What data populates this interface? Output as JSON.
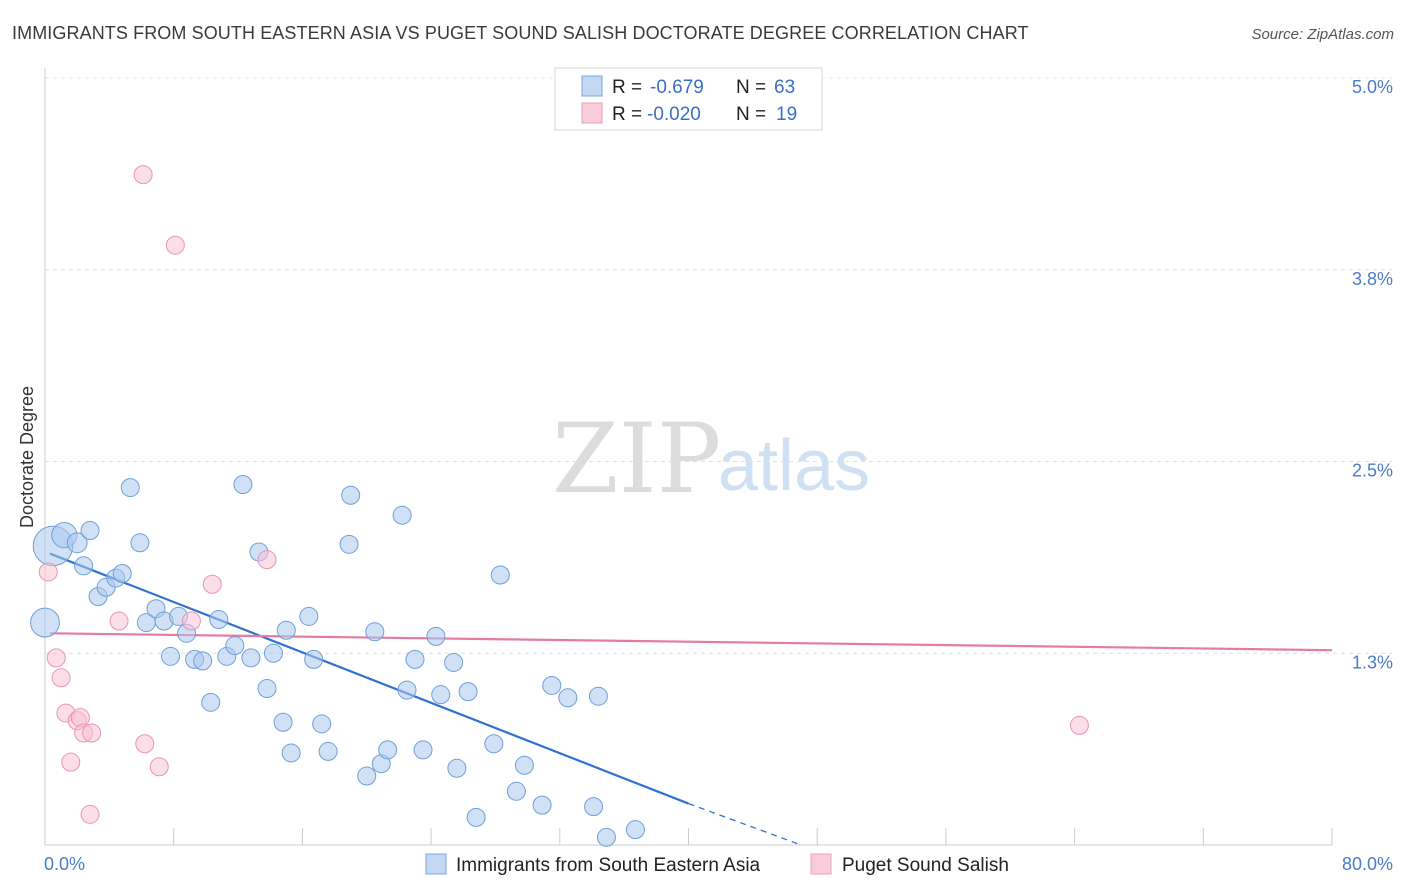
{
  "chart_data": {
    "type": "scatter",
    "title": "IMMIGRANTS FROM SOUTH EASTERN ASIA VS PUGET SOUND SALISH DOCTORATE DEGREE CORRELATION CHART",
    "source": "Source: ZipAtlas.com",
    "xlabel": "",
    "ylabel": "Doctorate Degree",
    "xlim": [
      0,
      80
    ],
    "ylim": [
      0,
      5.0
    ],
    "x_tick_labels": [
      "0.0%",
      "80.0%"
    ],
    "y_ticks": [
      {
        "value": 1.25,
        "label": "1.3%"
      },
      {
        "value": 2.5,
        "label": "2.5%"
      },
      {
        "value": 3.75,
        "label": "3.8%"
      },
      {
        "value": 5.0,
        "label": "5.0%"
      }
    ],
    "grid": true,
    "watermark": {
      "zip": "ZIP",
      "atlas": "atlas"
    },
    "legend": {
      "r_label": "R =",
      "n_label": "N =",
      "entries": [
        {
          "r": "-0.679",
          "n": "63"
        },
        {
          "r": "-0.020",
          "n": "19"
        }
      ]
    },
    "series": [
      {
        "name": "Immigrants from South Eastern Asia",
        "color": "#a9c8ee",
        "stroke": "#6f9fd8",
        "trend_color": "#2f72d0",
        "trend": {
          "x0": 0.3,
          "y0": 1.9,
          "x1": 40.0,
          "y1": 0.27,
          "dash_to_x": 47.0,
          "dash_to_y": 0.0
        },
        "points": [
          [
            0.5,
            1.95,
            22
          ],
          [
            1.2,
            2.02,
            14
          ],
          [
            2.0,
            1.97,
            11
          ],
          [
            2.8,
            2.05,
            10
          ],
          [
            2.4,
            1.82,
            10
          ],
          [
            3.3,
            1.62,
            10
          ],
          [
            3.8,
            1.68,
            10
          ],
          [
            4.4,
            1.74,
            10
          ],
          [
            4.8,
            1.77,
            10
          ],
          [
            5.3,
            2.33,
            10
          ],
          [
            5.9,
            1.97,
            10
          ],
          [
            6.3,
            1.45,
            10
          ],
          [
            6.9,
            1.54,
            10
          ],
          [
            7.4,
            1.46,
            10
          ],
          [
            7.8,
            1.23,
            10
          ],
          [
            8.3,
            1.49,
            10
          ],
          [
            8.8,
            1.38,
            10
          ],
          [
            9.3,
            1.21,
            10
          ],
          [
            9.8,
            1.2,
            10
          ],
          [
            10.3,
            0.93,
            10
          ],
          [
            10.8,
            1.47,
            10
          ],
          [
            11.3,
            1.23,
            10
          ],
          [
            11.8,
            1.3,
            10
          ],
          [
            12.3,
            2.35,
            10
          ],
          [
            12.8,
            1.22,
            10
          ],
          [
            13.3,
            1.91,
            10
          ],
          [
            13.8,
            1.02,
            10
          ],
          [
            14.2,
            1.25,
            10
          ],
          [
            14.8,
            0.8,
            10
          ],
          [
            15.3,
            0.6,
            10
          ],
          [
            15.0,
            1.4,
            10
          ],
          [
            16.4,
            1.49,
            10
          ],
          [
            16.7,
            1.21,
            10
          ],
          [
            17.2,
            0.79,
            10
          ],
          [
            17.6,
            0.61,
            10
          ],
          [
            18.9,
            1.96,
            10
          ],
          [
            19.0,
            2.28,
            10
          ],
          [
            20.0,
            0.45,
            10
          ],
          [
            20.5,
            1.39,
            10
          ],
          [
            20.9,
            0.53,
            10
          ],
          [
            21.3,
            0.62,
            10
          ],
          [
            22.2,
            2.15,
            10
          ],
          [
            22.5,
            1.01,
            10
          ],
          [
            23.0,
            1.21,
            10
          ],
          [
            23.5,
            0.62,
            10
          ],
          [
            24.3,
            1.36,
            10
          ],
          [
            24.6,
            0.98,
            10
          ],
          [
            25.4,
            1.19,
            10
          ],
          [
            25.6,
            0.5,
            10
          ],
          [
            26.3,
            1.0,
            10
          ],
          [
            26.8,
            0.18,
            10
          ],
          [
            27.9,
            0.66,
            10
          ],
          [
            28.3,
            1.76,
            10
          ],
          [
            29.3,
            0.35,
            10
          ],
          [
            29.8,
            0.52,
            10
          ],
          [
            30.9,
            0.26,
            10
          ],
          [
            31.5,
            1.04,
            10
          ],
          [
            32.5,
            0.96,
            10
          ],
          [
            34.1,
            0.25,
            10
          ],
          [
            34.4,
            0.97,
            10
          ],
          [
            34.9,
            0.05,
            10
          ],
          [
            36.7,
            0.1,
            10
          ],
          [
            0.0,
            1.45,
            16
          ]
        ]
      },
      {
        "name": "Puget Sound Salish",
        "color": "#f7c3d3",
        "stroke": "#e896b0",
        "trend_color": "#e57ba3",
        "trend": {
          "x0": 0.3,
          "y0": 1.38,
          "x1": 80.0,
          "y1": 1.27
        },
        "points": [
          [
            0.2,
            1.78,
            10
          ],
          [
            0.7,
            1.22,
            10
          ],
          [
            1.0,
            1.09,
            10
          ],
          [
            1.3,
            0.86,
            10
          ],
          [
            1.6,
            0.54,
            10
          ],
          [
            2.0,
            0.81,
            10
          ],
          [
            2.2,
            0.83,
            10
          ],
          [
            2.4,
            0.73,
            10
          ],
          [
            2.9,
            0.73,
            10
          ],
          [
            2.8,
            0.2,
            10
          ],
          [
            4.6,
            1.46,
            10
          ],
          [
            6.2,
            0.66,
            10
          ],
          [
            7.1,
            0.51,
            10
          ],
          [
            6.1,
            4.37,
            10
          ],
          [
            8.1,
            3.91,
            10
          ],
          [
            9.1,
            1.46,
            10
          ],
          [
            10.4,
            1.7,
            10
          ],
          [
            13.8,
            1.86,
            10
          ],
          [
            64.3,
            0.78,
            10
          ]
        ]
      }
    ],
    "bottom_legend": [
      "Immigrants from South Eastern Asia",
      "Puget Sound Salish"
    ]
  }
}
